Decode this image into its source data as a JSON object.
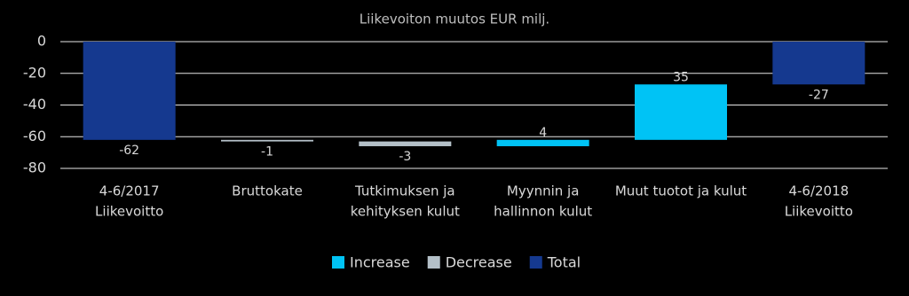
{
  "chart_data": {
    "type": "waterfall",
    "title": "Liikevoiton muutos EUR milj.",
    "categories": [
      [
        "4-6/2017",
        "Liikevoitto"
      ],
      [
        "Bruttokate"
      ],
      [
        "Tutkimuksen ja",
        "kehityksen kulut"
      ],
      [
        "Myynnin ja",
        "hallinnon kulut"
      ],
      [
        "Muut tuotot ja kulut"
      ],
      [
        "4-6/2018",
        "Liikevoitto"
      ]
    ],
    "series": [
      {
        "name": "Increase",
        "color": "#00c3f5",
        "values": [
          null,
          null,
          null,
          4,
          35,
          null
        ]
      },
      {
        "name": "Decrease",
        "color": "#b4c0c8",
        "values": [
          null,
          -1,
          -3,
          null,
          null,
          null
        ]
      },
      {
        "name": "Total",
        "color": "#15398f",
        "values": [
          -62,
          null,
          null,
          null,
          null,
          -27
        ]
      }
    ],
    "ylim": [
      -80,
      0
    ],
    "yticks": [
      0,
      -20,
      -40,
      -60,
      -80
    ],
    "grid": true,
    "legend": "bottom"
  }
}
